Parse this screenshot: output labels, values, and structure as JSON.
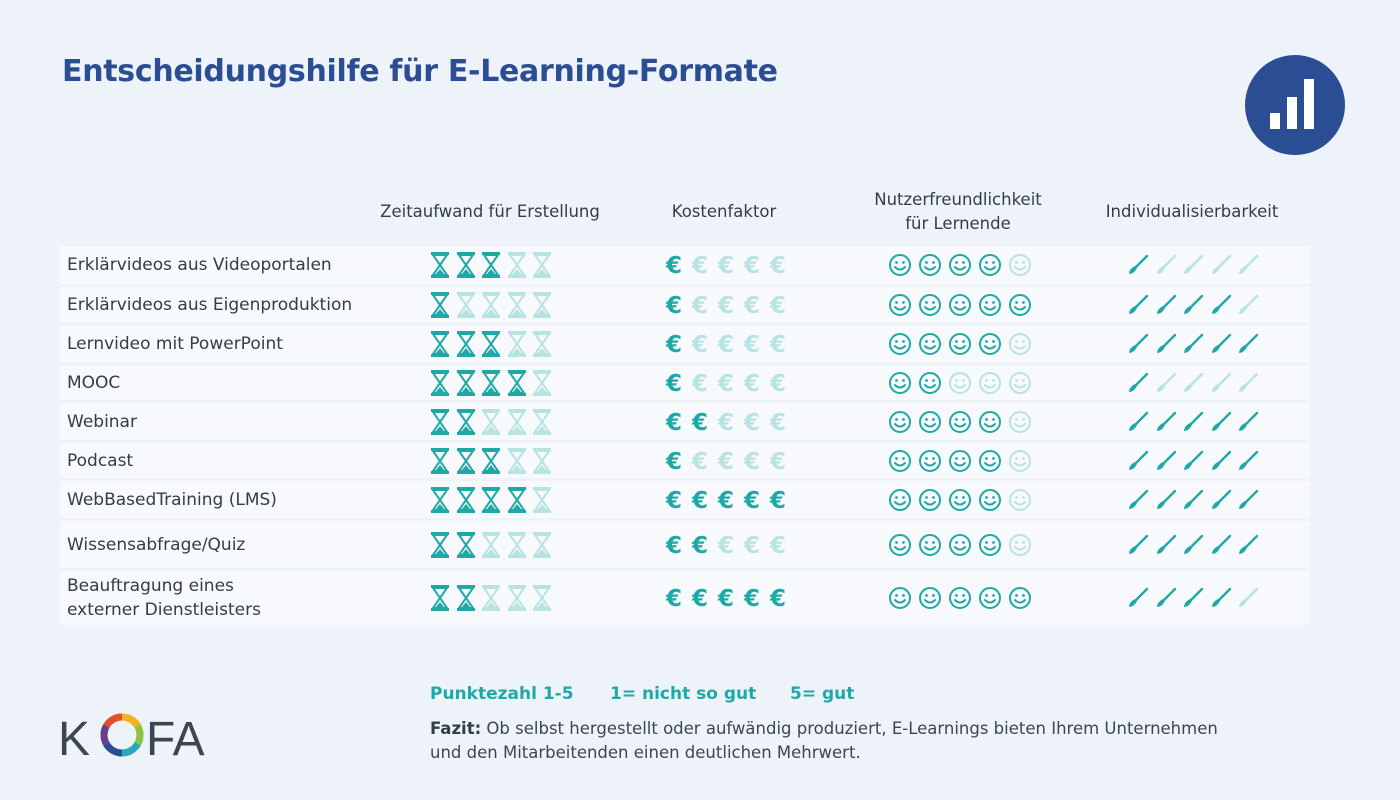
{
  "title": "Entscheidungshilfe für E-Learning-Formate",
  "header_icon": "bar-chart-icon",
  "chart_data": {
    "type": "table",
    "scale_max": 5,
    "columns": [
      {
        "key": "zeit",
        "label": "Zeitaufwand für Erstellung",
        "icon": "hourglass-icon"
      },
      {
        "key": "kosten",
        "label": "Kostenfaktor",
        "icon": "euro-icon"
      },
      {
        "key": "nutzer",
        "label": "Nutzerfreundlichkeit\nfür Lernende",
        "icon": "smiley-icon"
      },
      {
        "key": "indiv",
        "label": "Individualisierbarkeit",
        "icon": "brush-icon"
      }
    ],
    "rows": [
      {
        "label": "Erklärvideos aus Videoportalen",
        "zeit": 3,
        "kosten": 1,
        "nutzer": 4,
        "indiv": 1
      },
      {
        "label": "Erklärvideos aus Eigenproduktion",
        "zeit": 1,
        "kosten": 1,
        "nutzer": 5,
        "indiv": 4
      },
      {
        "label": "Lernvideo mit PowerPoint",
        "zeit": 3,
        "kosten": 1,
        "nutzer": 4,
        "indiv": 5
      },
      {
        "label": "MOOC",
        "zeit": 4,
        "kosten": 1,
        "nutzer": 2,
        "indiv": 1
      },
      {
        "label": "Webinar",
        "zeit": 2,
        "kosten": 2,
        "nutzer": 4,
        "indiv": 5
      },
      {
        "label": "Podcast",
        "zeit": 3,
        "kosten": 1,
        "nutzer": 4,
        "indiv": 5
      },
      {
        "label": "WebBasedTraining (LMS)",
        "zeit": 4,
        "kosten": 5,
        "nutzer": 4,
        "indiv": 5
      },
      {
        "label": "Wissensabfrage/Quiz",
        "zeit": 2,
        "kosten": 2,
        "nutzer": 4,
        "indiv": 5
      },
      {
        "label": "Beauftragung eines\nexterner Dienstleisters",
        "zeit": 2,
        "kosten": 5,
        "nutzer": 5,
        "indiv": 4
      }
    ]
  },
  "legend": {
    "scale": "Punktezahl 1-5",
    "low": "1= nicht so gut",
    "high": "5= gut"
  },
  "fazit": {
    "label": "Fazit:",
    "text": " Ob selbst hergestellt oder aufwändig produziert, E-Learnings bieten Ihrem Unternehmen und den Mitarbeitenden einen deutlichen Mehrwert."
  },
  "logo": {
    "text_left": "K",
    "text_right": "FA",
    "name": "kofa-logo"
  },
  "colors": {
    "title": "#2b4d94",
    "icon_filled": "#1ea9a7",
    "icon_empty": "#b8e3e3",
    "row_bg": "#f7f9fc",
    "page_bg": "#eef3fa"
  }
}
